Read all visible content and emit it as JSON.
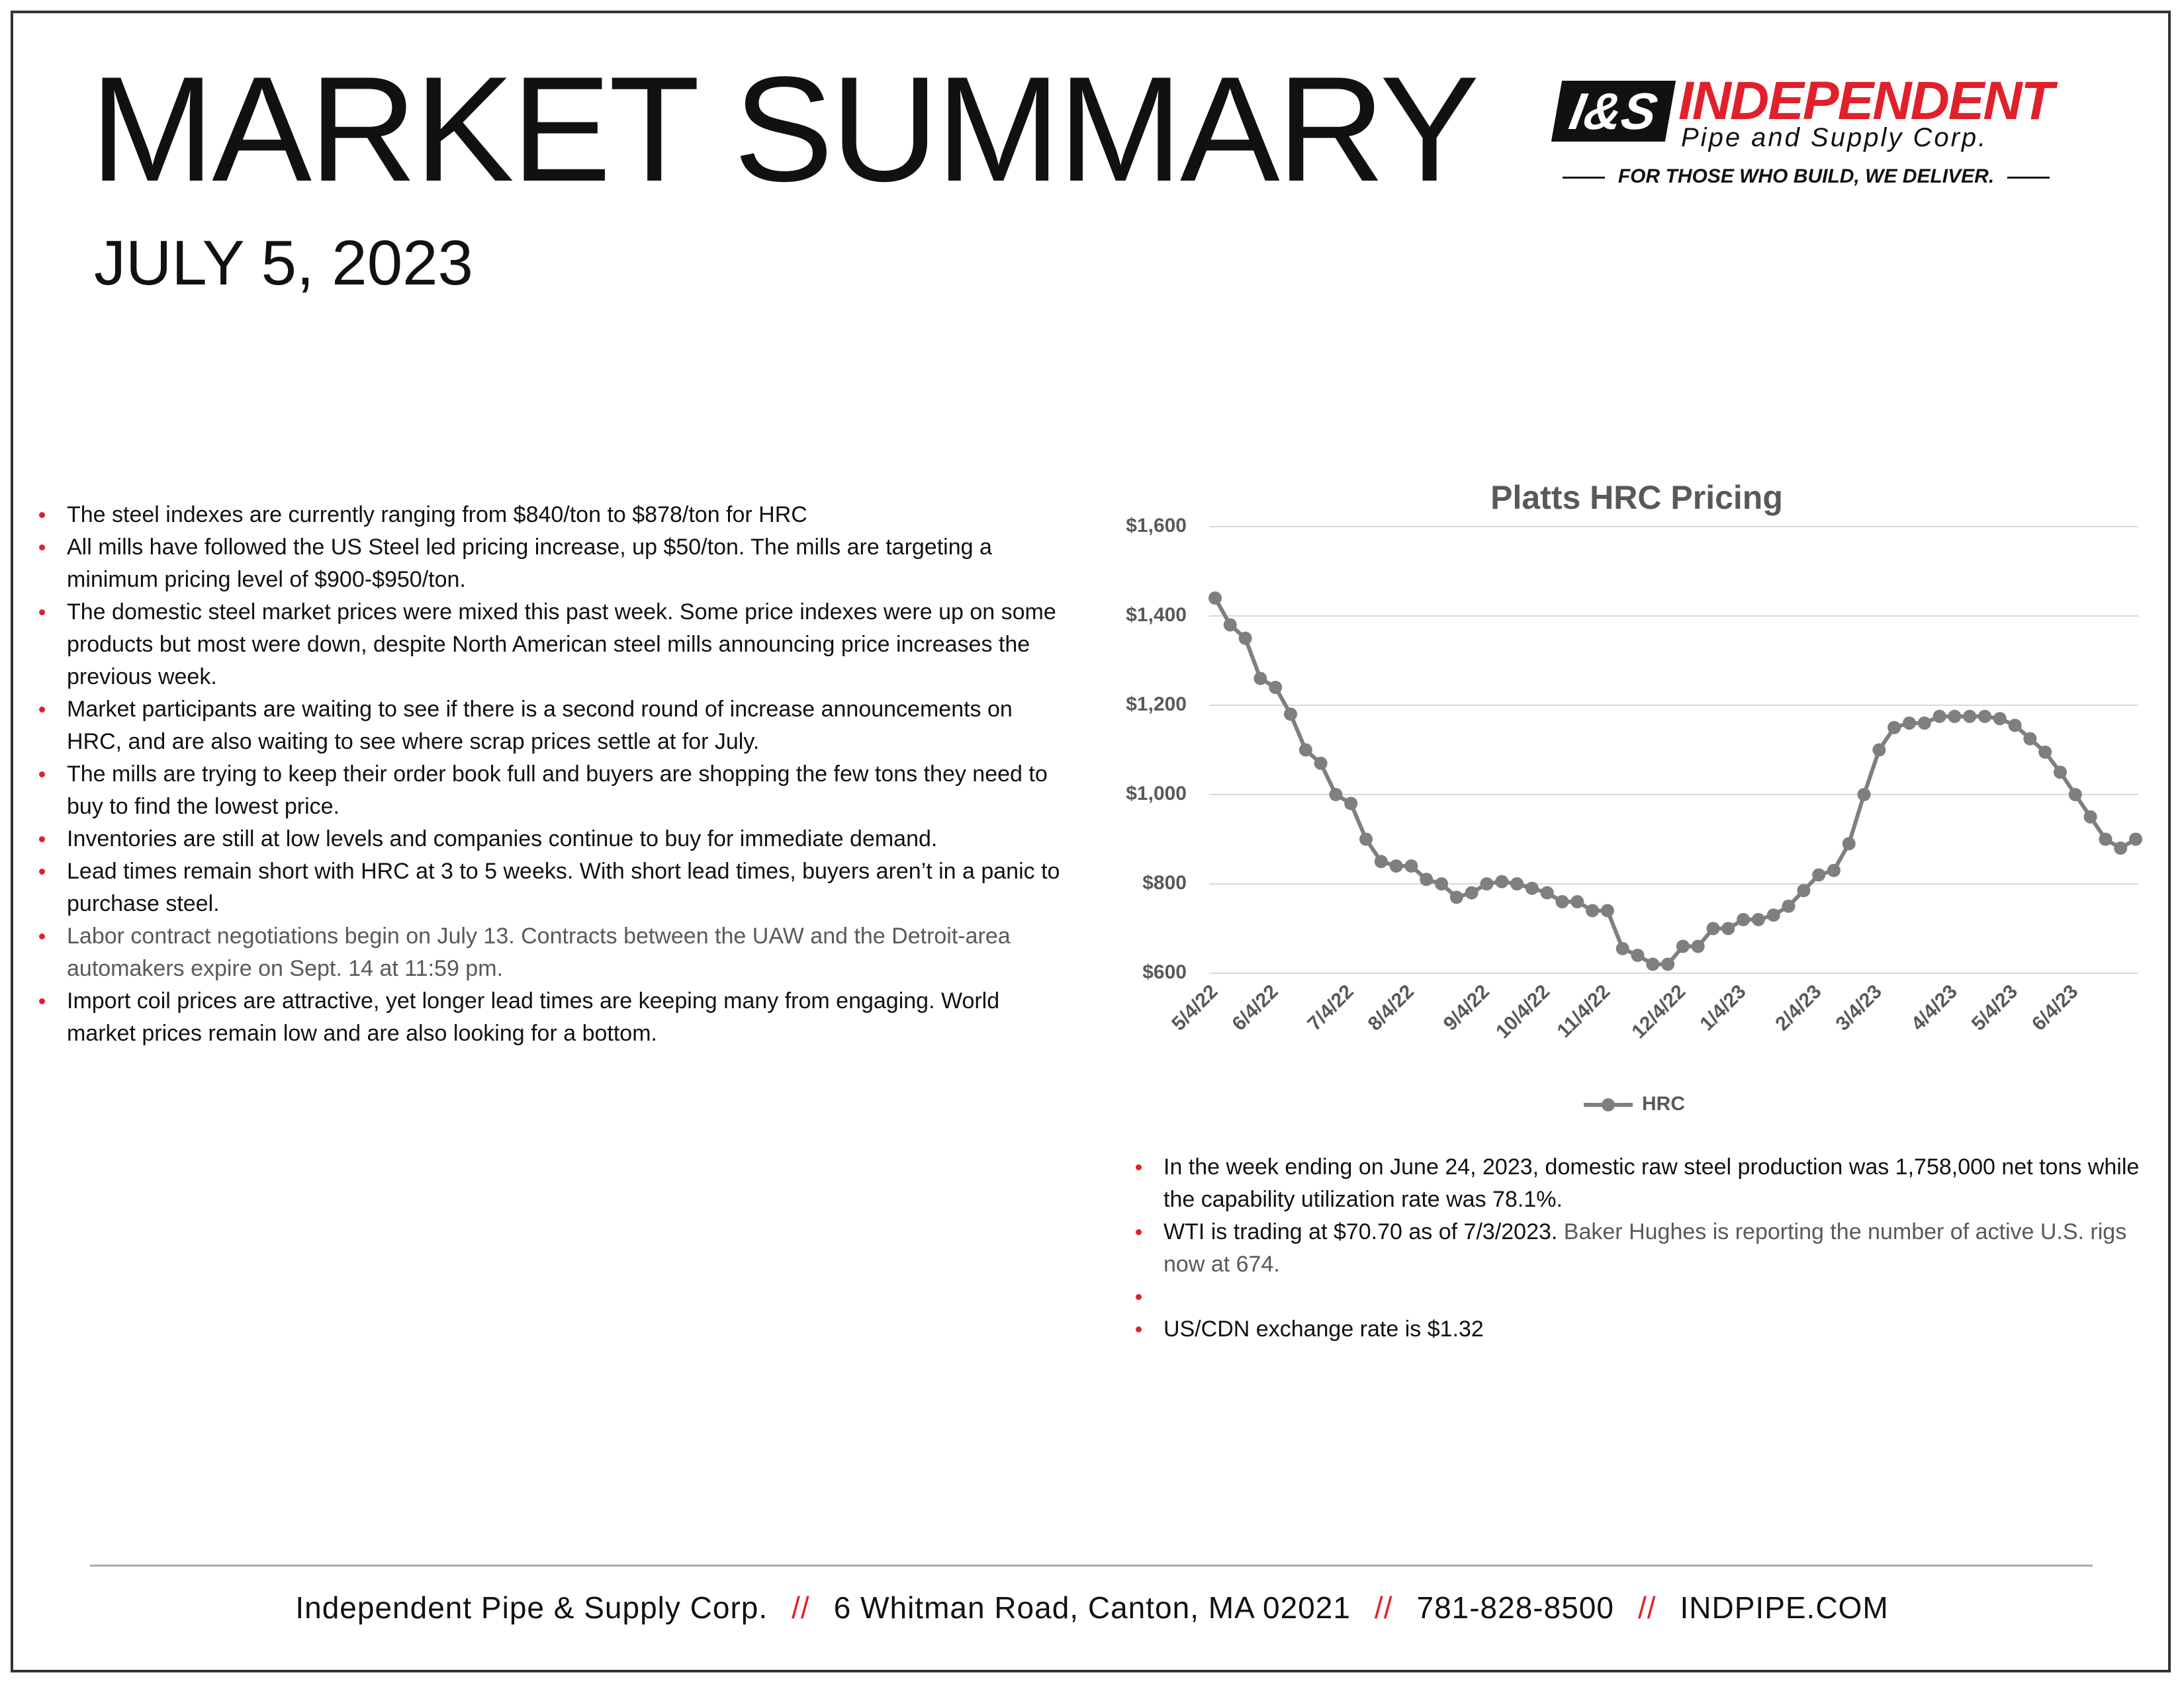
{
  "header": {
    "title": "MARKET SUMMARY",
    "date": "JULY 5, 2023",
    "logo": {
      "mark": "I&S",
      "name": "INDEPENDENT",
      "subname": "Pipe and Supply Corp.",
      "tagline": "FOR THOSE WHO BUILD, WE DELIVER."
    }
  },
  "left_bullets": [
    "The steel indexes are currently ranging from $840/ton to $878/ton for HRC",
    "All mills have followed the US Steel led pricing increase, up $50/ton.  The mills are targeting a minimum pricing level of $900-$950/ton.",
    "The domestic steel market prices were mixed this past week.  Some price indexes were up on some products but most were down, despite North American steel mills announcing price increases the previous week.",
    "Market participants are waiting to see if there is a second round of increase announcements on HRC, and are also waiting to see where scrap prices settle at for July.",
    "The mills are trying to keep their order book full and buyers are shopping the few tons they need to buy to find the lowest price.",
    "Inventories are still at low levels and companies continue to buy for immediate demand.",
    "Lead times remain short with HRC at 3 to 5 weeks.  With short lead times, buyers aren’t in a panic to purchase steel.",
    "Labor contract negotiations begin on July 13.  Contracts between the UAW and the Detroit-area automakers expire on Sept. 14 at 11:59 pm.",
    "Import coil prices are attractive, yet longer lead times are keeping many from engaging.  World market prices remain low and are also looking for a bottom."
  ],
  "right_bullets": {
    "production": "In the week ending on June 24, 2023, domestic raw steel production was 1,758,000 net tons while the capability utilization rate was 78.1%.",
    "wti": "WTI is trading at $70.70 as of 7/3/2023.",
    "rigs": " Baker Hughes is reporting the number of active U.S. rigs now at 674.",
    "exchange": "US/CDN exchange rate is $1.32"
  },
  "chart_data": {
    "type": "line",
    "title": "Platts HRC Pricing",
    "categories": [
      "5/4/22",
      null,
      null,
      null,
      "6/4/22",
      null,
      null,
      null,
      null,
      "7/4/22",
      null,
      null,
      null,
      "8/4/22",
      null,
      null,
      null,
      null,
      "9/4/22",
      null,
      null,
      null,
      "10/4/22",
      null,
      null,
      null,
      "11/4/22",
      null,
      null,
      null,
      null,
      "12/4/22",
      null,
      null,
      null,
      "1/4/23",
      null,
      null,
      null,
      null,
      "2/4/23",
      null,
      null,
      null,
      "3/4/23",
      null,
      null,
      null,
      null,
      "4/4/23",
      null,
      null,
      null,
      "5/4/23",
      null,
      null,
      null,
      "6/4/23",
      null,
      null,
      null,
      null
    ],
    "series": [
      {
        "name": "HRC",
        "color": "#7f7f7f",
        "values": [
          1440,
          1380,
          1350,
          1260,
          1240,
          1180,
          1100,
          1070,
          1000,
          980,
          900,
          850,
          840,
          840,
          810,
          800,
          770,
          780,
          800,
          805,
          800,
          790,
          780,
          760,
          760,
          740,
          740,
          655,
          640,
          620,
          620,
          660,
          660,
          700,
          700,
          720,
          720,
          730,
          750,
          785,
          820,
          830,
          890,
          1000,
          1100,
          1150,
          1160,
          1160,
          1175,
          1175,
          1175,
          1175,
          1170,
          1155,
          1125,
          1095,
          1050,
          1000,
          950,
          900,
          880,
          900
        ]
      }
    ],
    "ylim": [
      600,
      1600
    ],
    "yticks": [
      {
        "value": 600,
        "label": "$600"
      },
      {
        "value": 800,
        "label": "$800"
      },
      {
        "value": 1000,
        "label": "$1,000"
      },
      {
        "value": 1200,
        "label": "$1,200"
      },
      {
        "value": 1400,
        "label": "$1,400"
      },
      {
        "value": 1600,
        "label": "$1,600"
      }
    ],
    "grid": true,
    "legend": "bottom"
  },
  "footer": {
    "company": "Independent Pipe & Supply Corp.",
    "address": "6 Whitman Road, Canton, MA 02021",
    "phone": "781-828-8500",
    "web": "INDPIPE.COM",
    "separator": "//"
  }
}
